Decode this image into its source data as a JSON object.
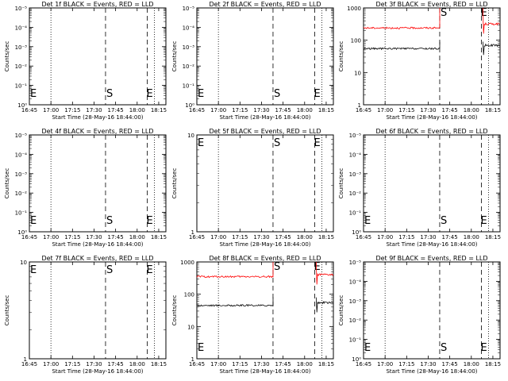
{
  "chart_data": [
    {
      "type": "line",
      "title": "Det 1f BLACK = Events, RED = LLD",
      "xlabel": "Start Time (28-May-16 18:44:00)",
      "ylabel": "Counts/sec",
      "x_ticks": [
        "16:45",
        "17:00",
        "17:15",
        "17:30",
        "17:45",
        "18:00",
        "18:15"
      ],
      "y_scale": "log",
      "y_ticks": [
        "10⁰",
        "10⁻¹",
        "10⁻²",
        "10⁻³",
        "10⁻⁴",
        "10⁻⁵"
      ],
      "y_tick_labels": [
        "10⁰",
        "10⁻¹",
        "10⁻²",
        "10⁻³",
        "10⁻⁴",
        "10⁻⁵"
      ],
      "markers": {
        "start_left": "E",
        "s": "S",
        "e": "E"
      },
      "series": []
    },
    {
      "type": "line",
      "title": "Det 2f BLACK = Events, RED = LLD",
      "xlabel": "Start Time (28-May-16 18:44:00)",
      "ylabel": "Counts/sec",
      "x_ticks": [
        "16:45",
        "17:00",
        "17:15",
        "17:30",
        "17:45",
        "18:00",
        "18:15"
      ],
      "y_scale": "log",
      "y_tick_labels": [
        "10⁰",
        "10⁻¹",
        "10⁻²",
        "10⁻³",
        "10⁻⁴",
        "10⁻⁵"
      ],
      "markers": {
        "start_left": "E",
        "s": "S",
        "e": "E"
      },
      "series": []
    },
    {
      "type": "line",
      "title": "Det 3f BLACK = Events, RED = LLD",
      "xlabel": "Start Time (28-May-16 18:44:00)",
      "ylabel": "Counts/sec",
      "x_ticks": [
        "16:45",
        "17:00",
        "17:15",
        "17:30",
        "17:45",
        "18:00",
        "18:15"
      ],
      "y_scale": "log",
      "y_tick_labels": [
        "1",
        "10",
        "100",
        "1000"
      ],
      "ylim": [
        1,
        1000
      ],
      "markers": {
        "start_left": "",
        "s": "S",
        "e": "E"
      },
      "series": [
        {
          "color": "#ff0000",
          "level": 240,
          "peak": 1000,
          "after": 320
        },
        {
          "color": "#000000",
          "level": 55,
          "peak": 90,
          "after": 70
        }
      ]
    },
    {
      "type": "line",
      "title": "Det 4f BLACK = Events, RED = LLD",
      "xlabel": "Start Time (28-May-16 18:44:00)",
      "ylabel": "Counts/sec",
      "x_ticks": [
        "16:45",
        "17:00",
        "17:15",
        "17:30",
        "17:45",
        "18:00",
        "18:15"
      ],
      "y_scale": "log",
      "y_tick_labels": [
        "10⁰",
        "10⁻¹",
        "10⁻²",
        "10⁻³",
        "10⁻⁴",
        "10⁻⁵"
      ],
      "markers": {
        "start_left": "E",
        "s": "S",
        "e": "E"
      },
      "series": []
    },
    {
      "type": "line",
      "title": "Det 5f BLACK = Events, RED = LLD",
      "xlabel": "Start Time (28-May-16 18:44:00)",
      "ylabel": "Counts/sec",
      "x_ticks": [
        "16:45",
        "17:00",
        "17:15",
        "17:30",
        "17:45",
        "18:00",
        "18:15"
      ],
      "y_scale": "log",
      "y_tick_labels": [
        "1",
        "10"
      ],
      "markers": {
        "start_left": "E",
        "s": "S",
        "e": "E"
      },
      "series": []
    },
    {
      "type": "line",
      "title": "Det 6f BLACK = Events, RED = LLD",
      "xlabel": "Start Time (28-May-16 18:44:00)",
      "ylabel": "Counts/sec",
      "x_ticks": [
        "16:45",
        "17:00",
        "17:15",
        "17:30",
        "17:45",
        "18:00",
        "18:15"
      ],
      "y_scale": "log",
      "y_tick_labels": [
        "10⁰",
        "10⁻¹",
        "10⁻²",
        "10⁻³",
        "10⁻⁴",
        "10⁻⁵"
      ],
      "markers": {
        "start_left": "E",
        "s": "S",
        "e": "E"
      },
      "series": []
    },
    {
      "type": "line",
      "title": "Det 7f BLACK = Events, RED = LLD",
      "xlabel": "Start Time (28-May-16 18:44:00)",
      "ylabel": "Counts/sec",
      "x_ticks": [
        "16:45",
        "17:00",
        "17:15",
        "17:30",
        "17:45",
        "18:00",
        "18:15"
      ],
      "y_scale": "log",
      "y_tick_labels": [
        "1",
        "10"
      ],
      "markers": {
        "start_left": "E",
        "s": "S",
        "e": "E"
      },
      "series": []
    },
    {
      "type": "line",
      "title": "Det 8f BLACK = Events, RED = LLD",
      "xlabel": "Start Time (28-May-16 18:44:00)",
      "ylabel": "Counts/sec",
      "x_ticks": [
        "16:45",
        "17:00",
        "17:15",
        "17:30",
        "17:45",
        "18:00",
        "18:15"
      ],
      "y_scale": "log",
      "y_tick_labels": [
        "1",
        "10",
        "100",
        "1000"
      ],
      "ylim": [
        1,
        1000
      ],
      "markers": {
        "start_left": "E",
        "s": "S",
        "e": "E"
      },
      "series": [
        {
          "color": "#ff0000",
          "level": 350,
          "peak": 1000,
          "after": 400
        },
        {
          "color": "#000000",
          "level": 45,
          "peak": 80,
          "after": 55
        }
      ]
    },
    {
      "type": "line",
      "title": "Det 9f BLACK = Events, RED = LLD",
      "xlabel": "Start Time (28-May-16 18:44:00)",
      "ylabel": "Counts/sec",
      "x_ticks": [
        "16:45",
        "17:00",
        "17:15",
        "17:30",
        "17:45",
        "18:00",
        "18:15"
      ],
      "y_scale": "log",
      "y_tick_labels": [
        "10⁰",
        "10⁻¹",
        "10⁻²",
        "10⁻³",
        "10⁻⁴",
        "10⁻⁵"
      ],
      "markers": {
        "start_left": "E",
        "s": "S",
        "e": "E"
      },
      "series": []
    }
  ]
}
